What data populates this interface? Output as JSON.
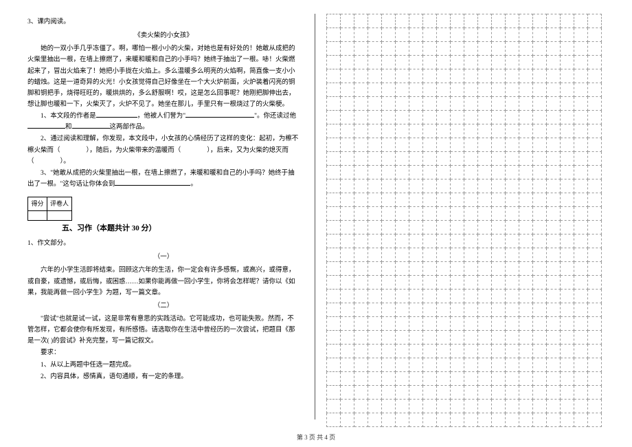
{
  "reading": {
    "qnum": "3、课内阅读。",
    "title": "《卖火柴的小女孩》",
    "p1": "她的一双小手几乎冻僵了。啊，哪怕一根小小的火柴，对她也是有好处的！她敢从成把的火柴里抽出一根，在墙上擦燃了，来暖和暖和自己的小手吗？她终于抽出了一根。哧！火柴燃起来了，冒出火焰来了！她把小手拢在火焰上。多么温暖多么明亮的火焰啊，简直像一支小小的蜡烛。这是一道奇异的火光！小女孩觉得自己好像坐在一个大火炉前面，火炉装着闪亮的铜脚和铜把手，烧得旺旺的，暖烘烘的，多么舒服啊！哎，这是怎么回事呢？她刚把脚伸出去，想让脚也暖和一下，火柴灭了，火炉不见了。她坐在那儿，手里只有一根烧过了的火柴梗。",
    "q1_a": "1、本文段的作者是",
    "q1_b": "，他被人们誉为\"",
    "q1_c": "\"。你还读过他",
    "q1_d": "和",
    "q1_e": "这两部作品。",
    "q2_a": "2、通过阅读和理解，你发现，本文段中，小女孩的心情经历了这样的变化：起初，为檫不檫火柴而（　　　　），随后，为火柴带来的温暖而（　　　　），后来，又为火柴的熄灭而（　　　　）。",
    "q3_a": "3、\"她敢从成把的火柴里抽出一根，在墙上擦燃了，来暖和暖和自己的小手吗？她终于抽出了一根。\"这句话让你体会到",
    "q3_b": "。"
  },
  "score": {
    "c1": "得分",
    "c2": "评卷人"
  },
  "writing": {
    "heading": "五、习作（本题共计 30 分）",
    "qnum": "1、作文部分。",
    "sub1": "（一）",
    "p1": "六年的小学生活即将结束。回顾这六年的生活，你一定会有许多感慨，或高兴，或得意，或自豪，或遗憾，或后悔，或困惑……如果你能再做一回小学生，你将会怎样呢？请你以《如果，我能再做一回小学生》为题，写一篇文章。",
    "sub2": "（二）",
    "p2": "\"尝试\"也就是试一试，这是非常有意思的实践活动。它可能成功，也可能失败。然而，不管怎样，它都会使你有所发现，有所感悟。请选取你在生活中曾经历的一次尝试，把题目《那是一次( )的尝试》补充完整，写一篇记叙文。",
    "req_label": "要求：",
    "req1": "1、从以上两题中任选一题完成。",
    "req2": "2、内容具体，感情真，语句通顺，有一定的条理。"
  },
  "grid": {
    "rows": 30,
    "cols": 20
  },
  "footer": "第 3 页 共 4 页"
}
